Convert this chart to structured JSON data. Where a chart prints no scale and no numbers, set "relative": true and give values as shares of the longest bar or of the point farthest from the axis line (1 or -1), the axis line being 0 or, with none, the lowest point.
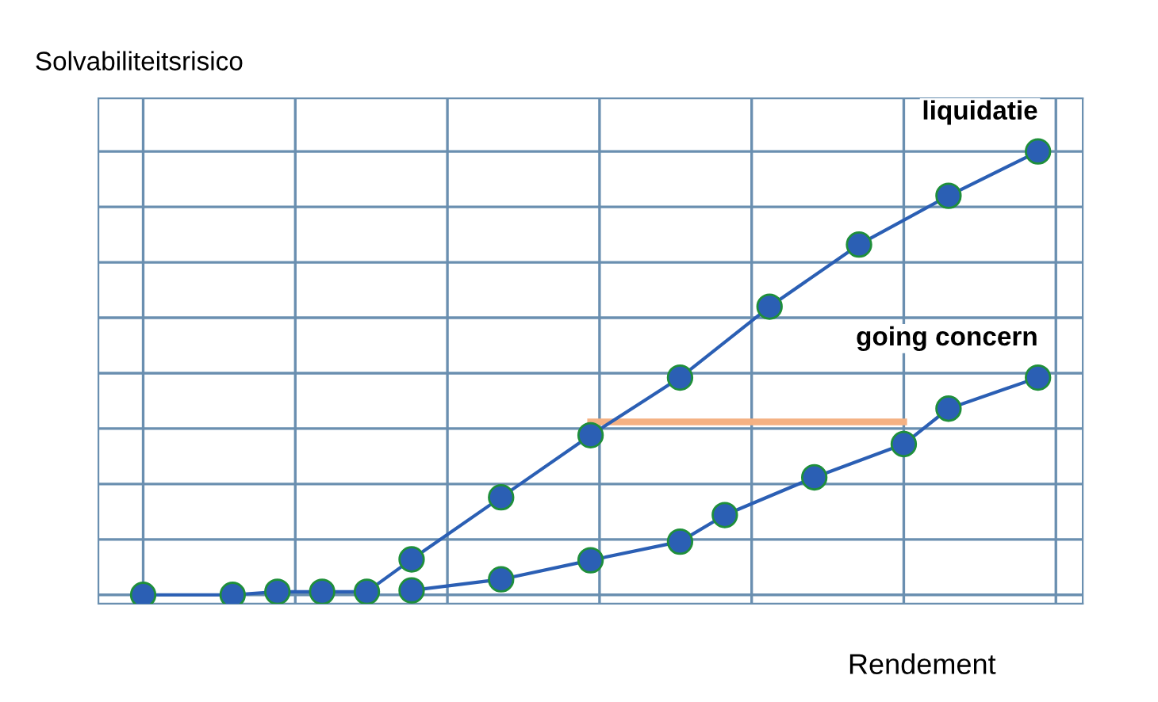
{
  "chart_data": {
    "type": "line",
    "ylabel": "Solvabiliteitsrisico",
    "xlabel": "Rendement",
    "relative": true,
    "grid": true,
    "legend": false,
    "marker": "circle",
    "line_style": "solid",
    "categories": [
      null,
      null,
      null,
      null,
      null,
      null,
      null,
      null,
      null,
      null,
      null,
      null,
      null,
      null,
      null,
      null,
      null,
      null,
      null,
      null,
      null
    ],
    "series": [
      {
        "name": "liquidatie",
        "color": "#2b5fb4",
        "values": [
          0,
          null,
          0,
          0.007,
          0.007,
          0.007,
          0.08,
          null,
          0.22,
          null,
          0.36,
          null,
          0.49,
          null,
          0.65,
          null,
          0.79,
          null,
          0.9,
          null,
          1
        ]
      },
      {
        "name": "going concern",
        "color": "#2b5fb4",
        "values": [
          null,
          null,
          null,
          null,
          null,
          null,
          0.01,
          null,
          0.035,
          null,
          0.078,
          null,
          0.12,
          0.18,
          null,
          0.265,
          null,
          0.34,
          0.42,
          null,
          0.49
        ]
      },
      {
        "color": "#f4b183",
        "marker": "none",
        "values": [
          null,
          null,
          null,
          null,
          null,
          null,
          null,
          null,
          null,
          null,
          0.39,
          null,
          null,
          null,
          null,
          null,
          null,
          0.39,
          null,
          null,
          null
        ]
      }
    ]
  }
}
